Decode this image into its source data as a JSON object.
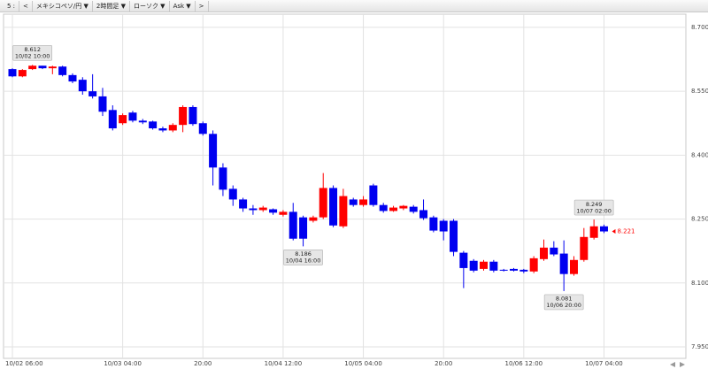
{
  "toolbar": [
    "5 :",
    "<",
    "メキシコペソ/円 ▼",
    "2時間足 ▼",
    "ローソク ▼",
    "Ask ▼",
    ">"
  ],
  "chart_data": {
    "type": "candlestick",
    "categories": [
      "10/02 06:00",
      null,
      null,
      null,
      null,
      null,
      null,
      null,
      null,
      null,
      null,
      "10/03 04:00",
      null,
      null,
      null,
      null,
      null,
      null,
      null,
      "20:00",
      null,
      null,
      null,
      null,
      null,
      null,
      null,
      "10/04 12:00",
      null,
      null,
      null,
      null,
      null,
      null,
      null,
      "10/05 04:00",
      null,
      null,
      null,
      null,
      null,
      null,
      null,
      "20:00",
      null,
      null,
      null,
      null,
      null,
      null,
      null,
      "10/06 12:00",
      null,
      null,
      null,
      null,
      null,
      null,
      null,
      "10/07 04:00"
    ],
    "open": [
      8.602,
      8.585,
      8.602,
      8.61,
      8.604,
      8.608,
      8.588,
      8.577,
      8.55,
      8.538,
      8.506,
      8.475,
      8.5,
      8.481,
      8.479,
      8.463,
      8.458,
      8.471,
      8.513,
      8.475,
      8.45,
      8.371,
      8.321,
      8.296,
      8.275,
      8.271,
      8.273,
      8.26,
      8.267,
      8.254,
      8.246,
      8.254,
      8.323,
      8.233,
      8.296,
      8.283,
      8.329,
      8.283,
      8.269,
      8.275,
      8.279,
      8.271,
      8.254,
      8.246,
      8.246,
      8.171,
      8.152,
      8.133,
      8.15,
      8.131,
      8.133,
      8.131,
      8.127,
      8.156,
      8.183,
      8.169,
      8.121,
      8.154,
      8.206,
      8.233
    ],
    "high": [
      8.604,
      8.602,
      8.612,
      8.61,
      8.61,
      8.61,
      8.592,
      8.583,
      8.59,
      8.558,
      8.517,
      8.498,
      8.504,
      8.485,
      8.481,
      8.467,
      8.475,
      8.517,
      8.517,
      8.479,
      8.458,
      8.381,
      8.329,
      8.3,
      8.283,
      8.281,
      8.275,
      8.271,
      8.288,
      8.258,
      8.258,
      8.358,
      8.329,
      8.321,
      8.3,
      8.304,
      8.333,
      8.288,
      8.281,
      8.283,
      8.283,
      8.296,
      8.258,
      8.25,
      8.25,
      8.175,
      8.156,
      8.154,
      8.154,
      8.133,
      8.135,
      8.133,
      8.163,
      8.202,
      8.198,
      8.2,
      8.163,
      8.229,
      8.249,
      8.237
    ],
    "low": [
      8.583,
      8.583,
      8.6,
      8.602,
      8.59,
      8.585,
      8.569,
      8.542,
      8.533,
      8.492,
      8.458,
      8.471,
      8.477,
      8.473,
      8.46,
      8.454,
      8.454,
      8.454,
      8.469,
      8.446,
      8.329,
      8.304,
      8.281,
      8.267,
      8.26,
      8.267,
      8.26,
      8.256,
      8.2,
      8.186,
      8.242,
      8.25,
      8.231,
      8.229,
      8.279,
      8.279,
      8.279,
      8.265,
      8.267,
      8.271,
      8.263,
      8.248,
      8.219,
      8.2,
      8.163,
      8.088,
      8.125,
      8.129,
      8.125,
      8.127,
      8.127,
      8.123,
      8.123,
      8.152,
      8.163,
      8.081,
      8.117,
      8.15,
      8.202,
      8.217
    ],
    "close": [
      8.585,
      8.6,
      8.61,
      8.604,
      8.608,
      8.588,
      8.573,
      8.55,
      8.538,
      8.502,
      8.463,
      8.494,
      8.481,
      8.477,
      8.463,
      8.458,
      8.471,
      8.513,
      8.473,
      8.45,
      8.371,
      8.319,
      8.296,
      8.275,
      8.271,
      8.277,
      8.265,
      8.267,
      8.204,
      8.204,
      8.254,
      8.323,
      8.235,
      8.304,
      8.283,
      8.296,
      8.283,
      8.269,
      8.277,
      8.281,
      8.267,
      8.252,
      8.223,
      8.221,
      8.173,
      8.135,
      8.129,
      8.15,
      8.129,
      8.129,
      8.129,
      8.127,
      8.158,
      8.183,
      8.167,
      8.121,
      8.154,
      8.208,
      8.233,
      8.221
    ],
    "up_color": "#ff0000",
    "down_color": "#0000f0",
    "ylim": [
      7.923,
      8.731
    ],
    "yticks": [
      {
        "value": 7.95,
        "label": "7.950"
      },
      {
        "value": 8.1,
        "label": "8.100"
      },
      {
        "value": 8.25,
        "label": "8.250"
      },
      {
        "value": 8.4,
        "label": "8.400"
      },
      {
        "value": 8.55,
        "label": "8.550"
      },
      {
        "value": 8.7,
        "label": "8.700"
      }
    ],
    "grid": true,
    "annotations": [
      {
        "value": 8.612,
        "label": "10/02 10:00"
      },
      {
        "value": 8.186,
        "label": "10/04 16:00"
      },
      {
        "value": 8.081,
        "label": "10/06 20:00"
      },
      {
        "value": 8.249,
        "label": "10/07 02:00"
      }
    ],
    "last_price": 8.221,
    "last_price_color": "#ff0000"
  }
}
